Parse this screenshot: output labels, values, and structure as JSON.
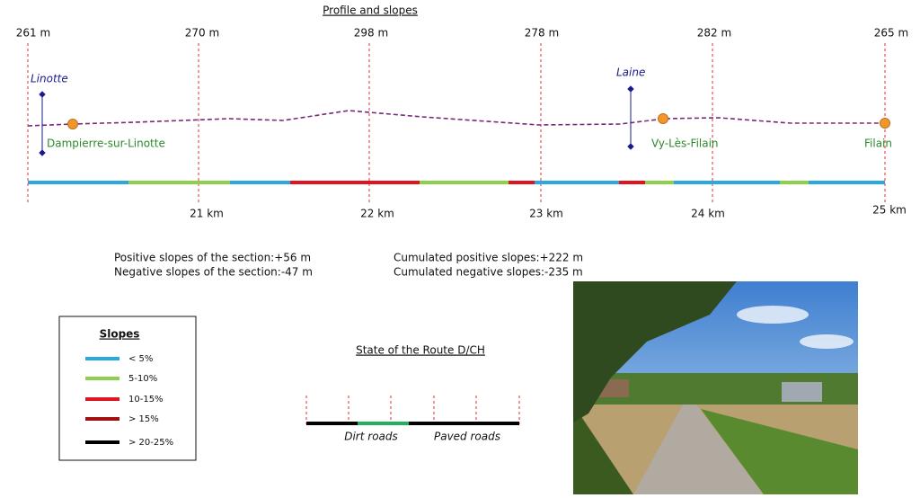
{
  "title": "Profile and slopes",
  "altitudes": [
    "261 m",
    "270 m",
    "298 m",
    "278 m",
    "282 m",
    "265 m"
  ],
  "distances": [
    "21 km",
    "22 km",
    "23 km",
    "24 km",
    "25 km"
  ],
  "rivers": [
    "Linotte",
    "Laine"
  ],
  "places": [
    "Dampierre-sur-Linotte",
    "Vy-Lès-Filain",
    "Filain"
  ],
  "stats": {
    "section_positive": "Positive slopes of the section:+56 m",
    "section_negative": "Negative slopes of the section:-47 m",
    "cumulated_positive": "Cumulated positive slopes:+222 m",
    "cumulated_negative": "Cumulated negative slopes:-235 m"
  },
  "legend": {
    "title": "Slopes",
    "items": [
      "< 5%",
      "5-10%",
      "10-15%",
      "> 15%",
      "> 20-25%"
    ]
  },
  "route": {
    "title": "State of the Route D/CH",
    "labels": [
      "Dirt roads",
      "Paved roads"
    ]
  }
}
